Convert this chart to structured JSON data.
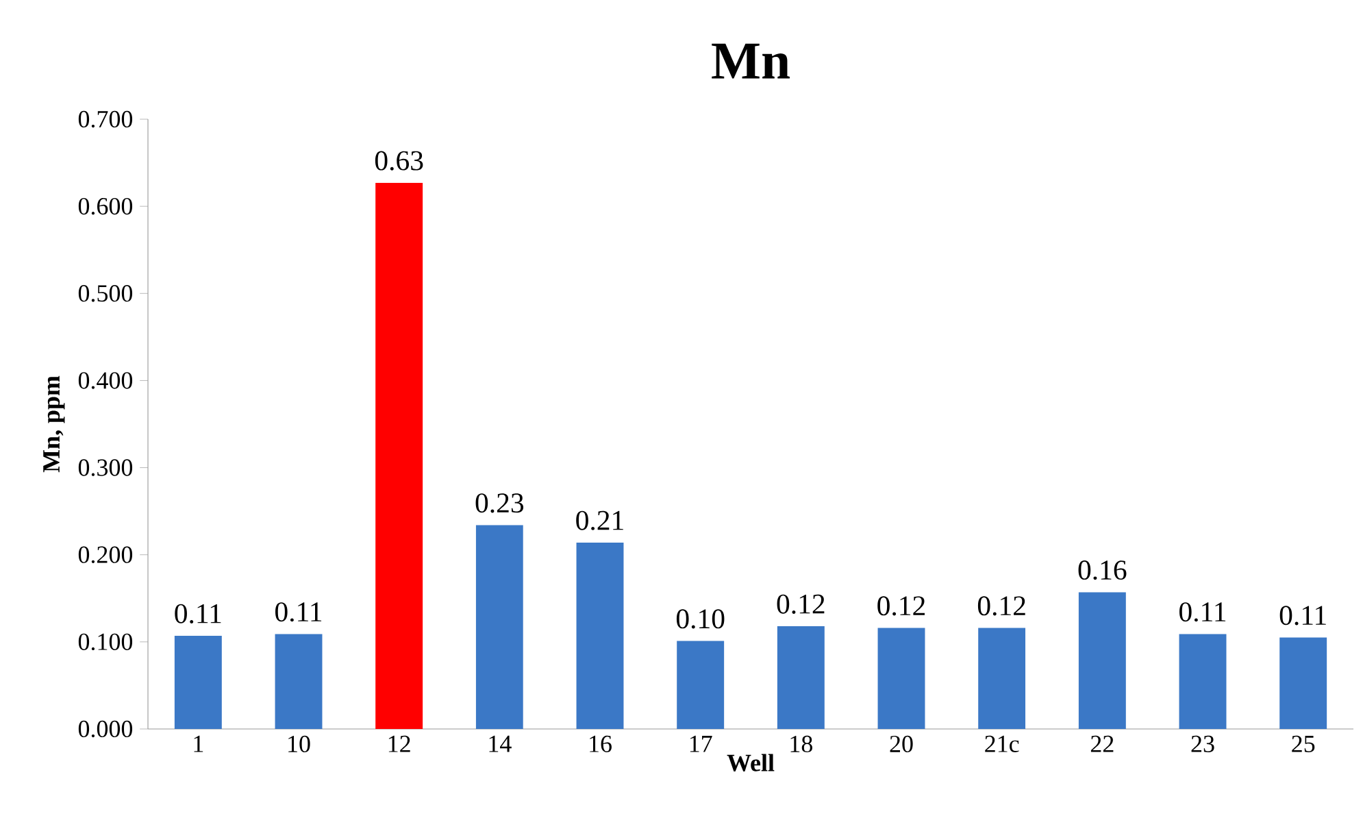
{
  "chart_data": {
    "type": "bar",
    "title": "Mn",
    "xlabel": "Well",
    "ylabel": "Mn, ppm",
    "categories": [
      "1",
      "10",
      "12",
      "14",
      "16",
      "17",
      "18",
      "20",
      "21c",
      "22",
      "23",
      "25"
    ],
    "values": [
      0.107,
      0.109,
      0.627,
      0.234,
      0.214,
      0.101,
      0.118,
      0.116,
      0.116,
      0.157,
      0.109,
      0.105
    ],
    "value_labels": [
      "0.11",
      "0.11",
      "0.63",
      "0.23",
      "0.21",
      "0.10",
      "0.12",
      "0.12",
      "0.12",
      "0.16",
      "0.11",
      "0.11"
    ],
    "colors": [
      "#3b78c6",
      "#3b78c6",
      "#ff0000",
      "#3b78c6",
      "#3b78c6",
      "#3b78c6",
      "#3b78c6",
      "#3b78c6",
      "#3b78c6",
      "#3b78c6",
      "#3b78c6",
      "#3b78c6"
    ],
    "ylim": [
      0,
      0.7
    ],
    "yticks": [
      {
        "value": 0,
        "label": "0.000"
      },
      {
        "value": 0.1,
        "label": "0.100"
      },
      {
        "value": 0.2,
        "label": "0.200"
      },
      {
        "value": 0.3,
        "label": "0.300"
      },
      {
        "value": 0.4,
        "label": "0.400"
      },
      {
        "value": 0.5,
        "label": "0.500"
      },
      {
        "value": 0.6,
        "label": "0.600"
      },
      {
        "value": 0.7,
        "label": "0.700"
      }
    ],
    "grid": false
  }
}
